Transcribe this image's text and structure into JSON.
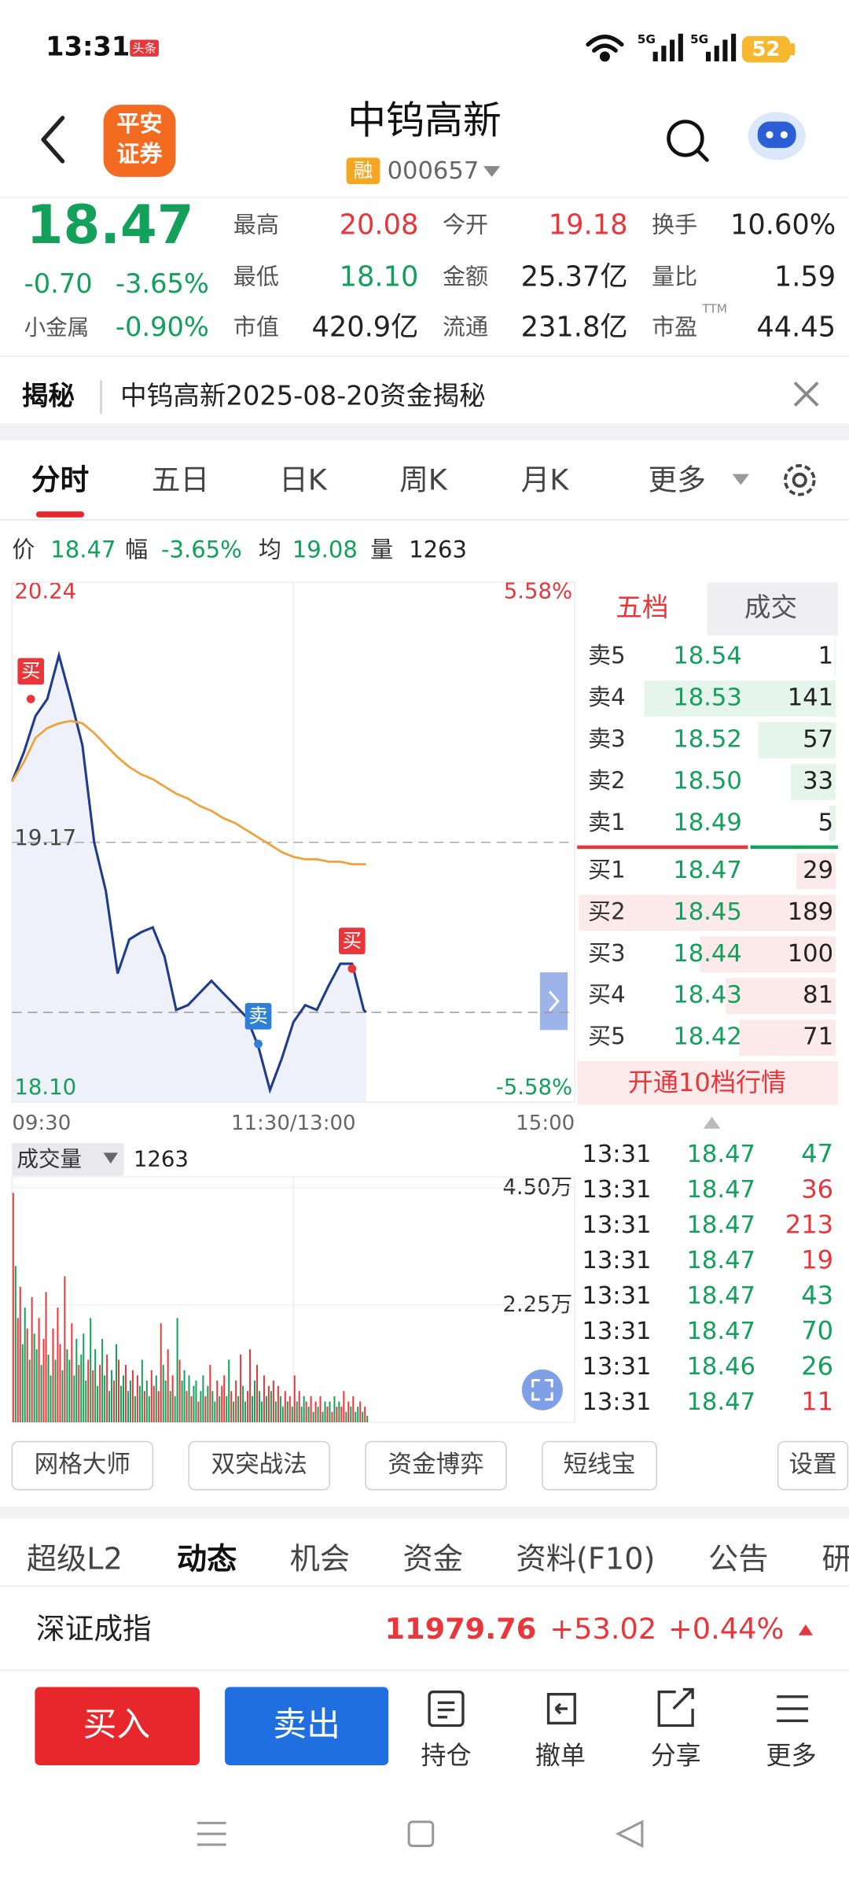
{
  "status_bar": {
    "time": "13:31",
    "badge": "头条",
    "signal_1": "5G",
    "signal_2": "5G",
    "battery": "52"
  },
  "header": {
    "logo": [
      "平安",
      "证券"
    ],
    "title": "中钨高新",
    "tag": "融",
    "code": "000657"
  },
  "quote": {
    "price": "18.47",
    "change": "-0.70",
    "change_pct": "-3.65%",
    "sector": "小金属",
    "sector_change": "-0.90%",
    "color": "#12a05a",
    "stats": [
      {
        "label": "最高",
        "value": "20.08",
        "color": "#e8363b"
      },
      {
        "label": "今开",
        "value": "19.18",
        "color": "#e8363b"
      },
      {
        "label": "换手",
        "value": "10.60%",
        "color": "#222222"
      },
      {
        "label": "最低",
        "value": "18.10",
        "color": "#12a05a"
      },
      {
        "label": "金额",
        "value": "25.37亿",
        "color": "#222222"
      },
      {
        "label": "量比",
        "value": "1.59",
        "color": "#222222"
      },
      {
        "label": "市值",
        "value": "420.9亿",
        "color": "#222222"
      },
      {
        "label": "流通",
        "value": "231.8亿",
        "color": "#222222"
      },
      {
        "label": "市盈",
        "value": "44.45",
        "color": "#222222"
      }
    ],
    "ttm": "TTM"
  },
  "notice": {
    "label": "揭秘",
    "text": "中钨高新2025-08-20资金揭秘"
  },
  "tabs": {
    "items": [
      "分时",
      "五日",
      "日K",
      "周K",
      "月K",
      "更多"
    ],
    "active": 0
  },
  "info_line": [
    {
      "label": "价",
      "value": "18.47",
      "color": "#12a05a"
    },
    {
      "label": "幅",
      "value": "-3.65%",
      "color": "#12a05a"
    },
    {
      "label": "均",
      "value": "19.08",
      "color": "#12a05a"
    },
    {
      "label": "量",
      "value": "1263",
      "color": "#222222"
    }
  ],
  "chart_data": [
    {
      "type": "line",
      "x": [
        "09:30",
        "09:35",
        "09:40",
        "09:45",
        "09:50",
        "09:55",
        "10:00",
        "10:05",
        "10:10",
        "10:15",
        "10:20",
        "10:25",
        "10:30",
        "10:35",
        "10:40",
        "10:45",
        "10:50",
        "10:55",
        "11:00",
        "11:05",
        "11:10",
        "11:15",
        "11:20",
        "11:25",
        "11:30",
        "13:05",
        "13:10",
        "13:15",
        "13:20",
        "13:25",
        "13:30",
        "13:31"
      ],
      "series": [
        {
          "color": "#1f3b8c",
          "values": [
            19.42,
            19.54,
            19.69,
            19.76,
            19.94,
            19.76,
            19.57,
            19.17,
            18.97,
            18.63,
            18.77,
            18.8,
            18.82,
            18.7,
            18.48,
            18.5,
            18.55,
            18.6,
            18.55,
            18.5,
            18.45,
            18.33,
            18.15,
            18.28,
            18.43,
            18.5,
            18.48,
            18.58,
            18.67,
            18.67,
            18.48,
            18.47
          ]
        },
        {
          "color": "#eea33a",
          "values": [
            19.42,
            19.5,
            19.6,
            19.64,
            19.66,
            19.67,
            19.66,
            19.62,
            19.57,
            19.52,
            19.48,
            19.45,
            19.43,
            19.4,
            19.37,
            19.35,
            19.32,
            19.3,
            19.27,
            19.25,
            19.22,
            19.19,
            19.16,
            19.13,
            19.11,
            19.1,
            19.1,
            19.09,
            19.09,
            19.08,
            19.08,
            19.08
          ]
        }
      ],
      "xticks": [
        "09:30",
        "11:30/13:00",
        "15:00"
      ],
      "xlim": [
        "09:30",
        "15:00"
      ],
      "ylim": [
        18.1,
        20.24
      ],
      "yticks": [
        20.24,
        19.17,
        {
          "value": 18.1,
          "label": "18.10"
        }
      ],
      "y2lim": [
        -5.58,
        5.58
      ],
      "y2ticks": [
        {
          "value": 5.58,
          "label": "5.58%"
        },
        {
          "value": -5.58,
          "label": "-5.58%"
        }
      ],
      "current_line": 18.47,
      "grid": true,
      "annotations": [
        {
          "label": "买",
          "x": "09:38",
          "y": 19.76,
          "color": "#e8363b"
        },
        {
          "label": "卖",
          "x": "11:15",
          "y": 18.34,
          "color": "#2f7fd8"
        },
        {
          "label": "买",
          "x": "13:25",
          "y": 18.65,
          "color": "#e8363b"
        }
      ]
    },
    {
      "type": "bar",
      "title": "成交量",
      "latest": 1263,
      "values": [
        44000,
        30000,
        20000,
        26000,
        15000,
        22000,
        18000,
        12000,
        24000,
        17000,
        14000,
        20000,
        11000,
        16000,
        25000,
        13000,
        9000,
        18000,
        12000,
        22000,
        15000,
        10000,
        28000,
        14000,
        12000,
        19000,
        9000,
        16000,
        11000,
        13000,
        17000,
        8000,
        12000,
        20000,
        10000,
        14000,
        7000,
        11000,
        16000,
        9000,
        13000,
        6000,
        10000,
        8000,
        15000,
        12000,
        7000,
        9000,
        11000,
        6000,
        8000,
        10000,
        5000,
        9000,
        7000,
        12000,
        6000,
        8000,
        5000,
        10000,
        7000,
        9000,
        6000,
        19000,
        11000,
        8000,
        14000,
        6000,
        9000,
        5000,
        20000,
        12000,
        8000,
        10000,
        6000,
        9000,
        5000,
        7000,
        8000,
        4000,
        6000,
        9000,
        5000,
        7000,
        11000,
        6000,
        4000,
        8000,
        5000,
        7000,
        9000,
        5000,
        12000,
        6000,
        4000,
        8000,
        5000,
        13000,
        7000,
        4000,
        6000,
        14000,
        5000,
        8000,
        11000,
        6000,
        4000,
        9000,
        5000,
        7000,
        6000,
        8000,
        4000,
        7000,
        5000,
        3000,
        6000,
        4000,
        5000,
        3000,
        9000,
        4000,
        6000,
        3000,
        5000,
        4000,
        3000,
        5000,
        2000,
        4000,
        3000,
        5000,
        2000,
        4000,
        3000,
        4000,
        2000,
        5000,
        3000,
        4000,
        3000,
        6000,
        2000,
        4000,
        3000,
        5000,
        2000,
        3000,
        4000,
        2000,
        3000,
        1263
      ],
      "up": [
        true,
        false,
        true,
        true,
        false,
        false,
        true,
        false,
        true,
        false,
        false,
        true,
        false,
        true,
        true,
        false,
        false,
        true,
        false,
        true,
        true,
        false,
        true,
        false,
        false,
        true,
        false,
        false,
        true,
        false,
        false,
        false,
        true,
        false,
        true,
        false,
        false,
        true,
        false,
        false,
        true,
        false,
        false,
        true,
        false,
        true,
        false,
        false,
        true,
        false,
        false,
        true,
        false,
        true,
        false,
        false,
        true,
        false,
        false,
        true,
        true,
        false,
        true,
        true,
        false,
        false,
        true,
        false,
        true,
        false,
        false,
        true,
        false,
        false,
        true,
        false,
        true,
        false,
        false,
        true,
        false,
        false,
        true,
        false,
        true,
        false,
        false,
        true,
        false,
        true,
        true,
        false,
        false,
        true,
        false,
        true,
        false,
        true,
        false,
        false,
        true,
        true,
        false,
        false,
        true,
        false,
        false,
        true,
        false,
        true,
        false,
        true,
        false,
        true,
        false,
        false,
        true,
        false,
        true,
        false,
        true,
        false,
        true,
        false,
        false,
        true,
        false,
        true,
        false,
        true,
        false,
        true,
        false,
        false,
        true,
        false,
        true,
        false,
        true,
        false,
        true,
        true,
        false,
        true,
        false,
        true,
        false,
        false,
        true,
        false,
        true,
        false
      ],
      "up_color": "#e8363b",
      "down_color": "#12a05a",
      "ylim": [
        0,
        45000
      ],
      "yticks": [
        {
          "value": 45000,
          "label": "4.50万"
        },
        {
          "value": 22500,
          "label": "2.25万"
        }
      ]
    }
  ],
  "order_book": {
    "tabs": [
      "五档",
      "成交"
    ],
    "price_color": "#12a05a",
    "asks": [
      {
        "label": "卖5",
        "price": "18.54",
        "volume": 1
      },
      {
        "label": "卖4",
        "price": "18.53",
        "volume": 141
      },
      {
        "label": "卖3",
        "price": "18.52",
        "volume": 57
      },
      {
        "label": "卖2",
        "price": "18.50",
        "volume": 33
      },
      {
        "label": "卖1",
        "price": "18.49",
        "volume": 5
      }
    ],
    "bids": [
      {
        "label": "买1",
        "price": "18.47",
        "volume": 29
      },
      {
        "label": "买2",
        "price": "18.45",
        "volume": 189
      },
      {
        "label": "买3",
        "price": "18.44",
        "volume": 100
      },
      {
        "label": "买4",
        "price": "18.43",
        "volume": 81
      },
      {
        "label": "买5",
        "price": "18.42",
        "volume": 71
      }
    ],
    "button": "开通10档行情"
  },
  "trades": [
    {
      "time": "13:31",
      "price": "18.47",
      "volume": 47,
      "color": "#12a05a"
    },
    {
      "time": "13:31",
      "price": "18.47",
      "volume": 36,
      "color": "#e8363b"
    },
    {
      "time": "13:31",
      "price": "18.47",
      "volume": 213,
      "color": "#e8363b"
    },
    {
      "time": "13:31",
      "price": "18.47",
      "volume": 19,
      "color": "#e8363b"
    },
    {
      "time": "13:31",
      "price": "18.47",
      "volume": 43,
      "color": "#12a05a"
    },
    {
      "time": "13:31",
      "price": "18.47",
      "volume": 70,
      "color": "#12a05a"
    },
    {
      "time": "13:31",
      "price": "18.46",
      "volume": 26,
      "color": "#12a05a"
    },
    {
      "time": "13:31",
      "price": "18.47",
      "volume": 11,
      "color": "#e8363b"
    }
  ],
  "tools": [
    "网格大师",
    "双突战法",
    "资金博弈",
    "短线宝",
    "设置"
  ],
  "bottom_tabs": {
    "items": [
      "超级L2",
      "动态",
      "机会",
      "资金",
      "资料(F10)",
      "公告",
      "研"
    ],
    "active": 1
  },
  "index": {
    "name": "深证成指",
    "value": "11979.76",
    "change": "+53.02",
    "change_pct": "+0.44%",
    "color": "#e8363b"
  },
  "actions": {
    "buy": "买入",
    "sell": "卖出",
    "items": [
      "持仓",
      "撤单",
      "分享",
      "更多"
    ]
  }
}
